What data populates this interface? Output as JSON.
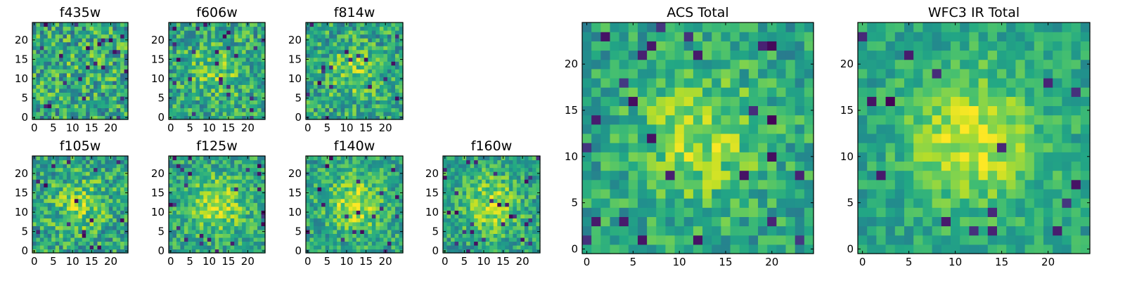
{
  "chart_data": {
    "type": "heatmap",
    "colormap": "viridis",
    "panels": [
      {
        "title": "f435w",
        "grid_size": 25,
        "xlim": [
          -0.5,
          24.5
        ],
        "ylim": [
          -0.5,
          24.5
        ],
        "xticks": [
          0,
          5,
          10,
          15,
          20
        ],
        "yticks": [
          0,
          5,
          10,
          15,
          20
        ],
        "noise_level": 0.28,
        "blob_strength": 0.05
      },
      {
        "title": "f606w",
        "grid_size": 25,
        "xlim": [
          -0.5,
          24.5
        ],
        "ylim": [
          -0.5,
          24.5
        ],
        "xticks": [
          0,
          5,
          10,
          15,
          20
        ],
        "yticks": [
          0,
          5,
          10,
          15,
          20
        ],
        "noise_level": 0.24,
        "blob_strength": 0.2
      },
      {
        "title": "f814w",
        "grid_size": 25,
        "xlim": [
          -0.5,
          24.5
        ],
        "ylim": [
          -0.5,
          24.5
        ],
        "xticks": [
          0,
          5,
          10,
          15,
          20
        ],
        "yticks": [
          0,
          5,
          10,
          15,
          20
        ],
        "noise_level": 0.24,
        "blob_strength": 0.2
      },
      {
        "title": "f105w",
        "grid_size": 25,
        "xlim": [
          -0.5,
          24.5
        ],
        "ylim": [
          -0.5,
          24.5
        ],
        "xticks": [
          0,
          5,
          10,
          15,
          20
        ],
        "yticks": [
          0,
          5,
          10,
          15,
          20
        ],
        "noise_level": 0.24,
        "blob_strength": 0.2
      },
      {
        "title": "f125w",
        "grid_size": 25,
        "xlim": [
          -0.5,
          24.5
        ],
        "ylim": [
          -0.5,
          24.5
        ],
        "xticks": [
          0,
          5,
          10,
          15,
          20
        ],
        "yticks": [
          0,
          5,
          10,
          15,
          20
        ],
        "noise_level": 0.2,
        "blob_strength": 0.3
      },
      {
        "title": "f140w",
        "grid_size": 25,
        "xlim": [
          -0.5,
          24.5
        ],
        "ylim": [
          -0.5,
          24.5
        ],
        "xticks": [
          0,
          5,
          10,
          15,
          20
        ],
        "yticks": [
          0,
          5,
          10,
          15,
          20
        ],
        "noise_level": 0.2,
        "blob_strength": 0.3
      },
      {
        "title": "f160w",
        "grid_size": 25,
        "xlim": [
          -0.5,
          24.5
        ],
        "ylim": [
          -0.5,
          24.5
        ],
        "xticks": [
          0,
          5,
          10,
          15,
          20
        ],
        "yticks": [
          0,
          5,
          10,
          15,
          20
        ],
        "noise_level": 0.2,
        "blob_strength": 0.3
      },
      {
        "title": "ACS Total",
        "grid_size": 25,
        "xlim": [
          -0.5,
          24.5
        ],
        "ylim": [
          -0.5,
          24.5
        ],
        "xticks": [
          0,
          5,
          10,
          15,
          20
        ],
        "yticks": [
          0,
          5,
          10,
          15,
          20
        ],
        "noise_level": 0.18,
        "blob_strength": 0.28
      },
      {
        "title": "WFC3 IR Total",
        "grid_size": 25,
        "xlim": [
          -0.5,
          24.5
        ],
        "ylim": [
          -0.5,
          24.5
        ],
        "xticks": [
          0,
          5,
          10,
          15,
          20
        ],
        "yticks": [
          0,
          5,
          10,
          15,
          20
        ],
        "noise_level": 0.14,
        "blob_strength": 0.35
      }
    ]
  }
}
